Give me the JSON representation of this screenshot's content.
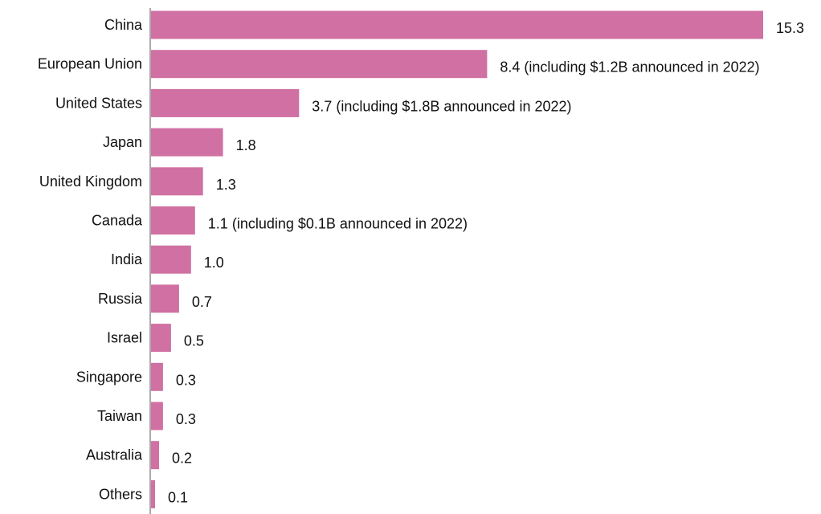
{
  "chart_data": {
    "type": "bar",
    "orientation": "horizontal",
    "title": "",
    "xlabel": "",
    "ylabel": "",
    "xlim": [
      0,
      15.3
    ],
    "grid": false,
    "legend": "none",
    "bar_color": "#d070a3",
    "axis_color": "#555555",
    "categories": [
      "China",
      "European Union",
      "United States",
      "Japan",
      "United Kingdom",
      "Canada",
      "India",
      "Russia",
      "Israel",
      "Singapore",
      "Taiwan",
      "Australia",
      "Others"
    ],
    "values": [
      15.3,
      8.4,
      3.7,
      1.8,
      1.3,
      1.1,
      1.0,
      0.7,
      0.5,
      0.3,
      0.3,
      0.2,
      0.1
    ],
    "data_labels": [
      "15.3",
      "8.4 (including $1.2B announced in 2022)",
      "3.7 (including $1.8B announced in 2022)",
      "1.8",
      "1.3",
      "1.1 (including $0.1B announced in 2022)",
      "1.0",
      "0.7",
      "0.5",
      "0.3",
      "0.3",
      "0.2",
      "0.1"
    ]
  }
}
